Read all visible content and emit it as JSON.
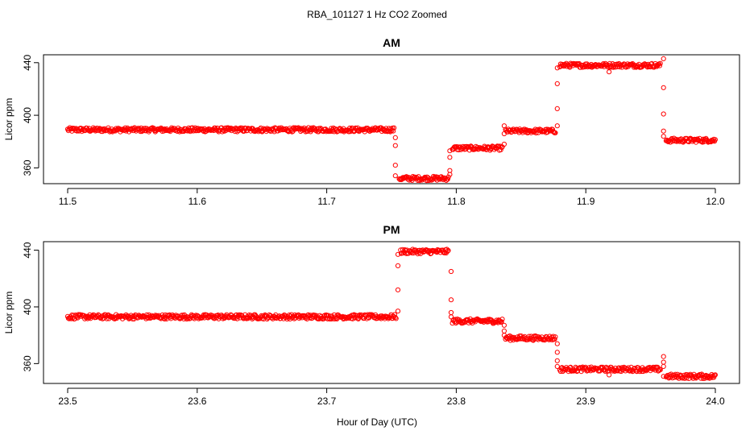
{
  "figure": {
    "title": "RBA_101127  1 Hz CO2 Zoomed",
    "xlabel": "Hour of Day (UTC)"
  },
  "colors": {
    "points": "#ff0000",
    "axes": "#000000",
    "background": "#ffffff"
  },
  "chart_data": [
    {
      "type": "scatter",
      "title": "AM",
      "ylabel": "Licor ppm",
      "xlim": [
        11.5,
        12.0
      ],
      "ylim": [
        348,
        446
      ],
      "xticks": [
        11.5,
        11.6,
        11.7,
        11.8,
        11.9,
        12.0
      ],
      "xtick_labels": [
        "11.5",
        "11.6",
        "11.7",
        "11.8",
        "11.9",
        "12.0"
      ],
      "yticks": [
        360,
        400,
        440
      ],
      "ytick_labels": [
        "360",
        "400",
        "440"
      ],
      "series": [
        {
          "marker": "open-circle",
          "color": "#ff0000",
          "segments": [
            {
              "x_start": 11.5,
              "x_end": 11.752,
              "y": 389
            },
            {
              "x_start": 11.756,
              "x_end": 11.794,
              "y": 352
            },
            {
              "x_start": 11.797,
              "x_end": 11.836,
              "y": 375
            },
            {
              "x_start": 11.838,
              "x_end": 11.877,
              "y": 388
            },
            {
              "x_start": 11.88,
              "x_end": 11.958,
              "y": 438
            },
            {
              "x_start": 11.962,
              "x_end": 12.0,
              "y": 381
            }
          ],
          "transitions": [
            {
              "x": 11.753,
              "y": [
                383,
                377,
                362,
                354
              ]
            },
            {
              "x": 11.795,
              "y": [
                355,
                358,
                368,
                373
              ]
            },
            {
              "x": 11.837,
              "y": [
                378,
                386,
                392
              ]
            },
            {
              "x": 11.878,
              "y": [
                392,
                405,
                424,
                436
              ]
            },
            {
              "x": 11.918,
              "y": [
                433
              ]
            },
            {
              "x": 11.96,
              "y": [
                443,
                421,
                401,
                388,
                384
              ]
            }
          ]
        }
      ]
    },
    {
      "type": "scatter",
      "title": "PM",
      "ylabel": "Licor ppm",
      "xlim": [
        23.5,
        24.0
      ],
      "ylim": [
        346,
        446
      ],
      "xticks": [
        23.5,
        23.6,
        23.7,
        23.8,
        23.9,
        24.0
      ],
      "xtick_labels": [
        "23.5",
        "23.6",
        "23.7",
        "23.8",
        "23.9",
        "24.0"
      ],
      "yticks": [
        360,
        400,
        440
      ],
      "ytick_labels": [
        "360",
        "400",
        "440"
      ],
      "series": [
        {
          "marker": "open-circle",
          "color": "#ff0000",
          "segments": [
            {
              "x_start": 23.5,
              "x_end": 23.754,
              "y": 393
            },
            {
              "x_start": 23.757,
              "x_end": 23.794,
              "y": 439
            },
            {
              "x_start": 23.797,
              "x_end": 23.836,
              "y": 390
            },
            {
              "x_start": 23.838,
              "x_end": 23.877,
              "y": 378
            },
            {
              "x_start": 23.88,
              "x_end": 23.958,
              "y": 356
            },
            {
              "x_start": 23.962,
              "x_end": 24.0,
              "y": 351
            }
          ],
          "transitions": [
            {
              "x": 23.755,
              "y": [
                397,
                412,
                429,
                437
              ]
            },
            {
              "x": 23.796,
              "y": [
                425,
                405,
                396,
                393
              ]
            },
            {
              "x": 23.837,
              "y": [
                387,
                383,
                380
              ]
            },
            {
              "x": 23.878,
              "y": [
                374,
                368,
                362,
                358
              ]
            },
            {
              "x": 23.918,
              "y": [
                352
              ]
            },
            {
              "x": 23.96,
              "y": [
                365,
                361,
                358,
                351
              ]
            }
          ]
        }
      ]
    }
  ]
}
